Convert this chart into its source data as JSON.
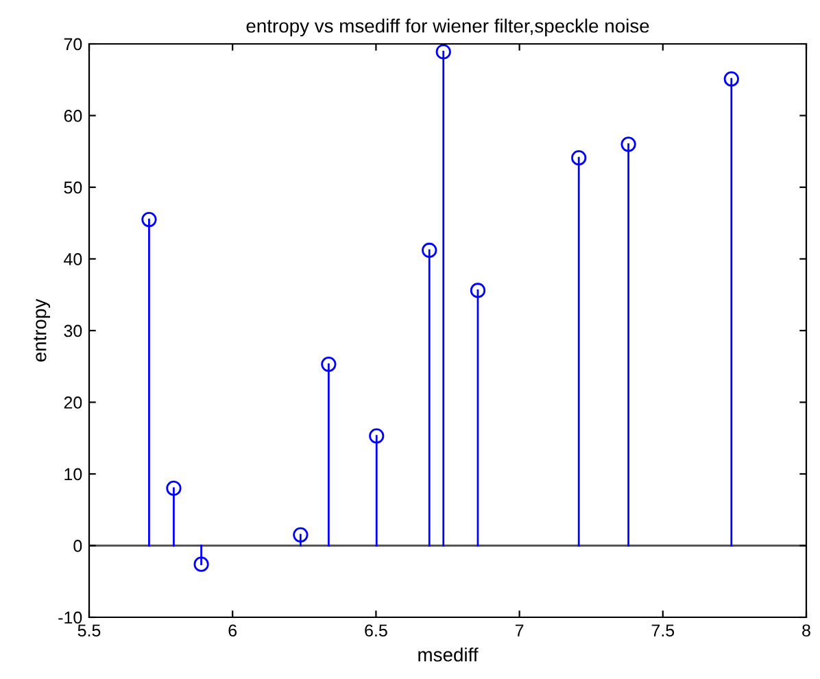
{
  "chart_data": {
    "type": "lollipop",
    "title": "entropy vs msediff for wiener filter,speckle noise",
    "xlabel": "msediff",
    "ylabel": "entropy",
    "x": [
      5.709,
      5.795,
      5.891,
      6.237,
      6.335,
      6.502,
      6.686,
      6.735,
      6.855,
      7.207,
      7.38,
      7.739
    ],
    "series": [
      {
        "color": "#0000ff",
        "values": [
          45.5,
          8.0,
          -2.6,
          1.5,
          25.3,
          15.3,
          41.2,
          68.9,
          35.6,
          54.1,
          56.0,
          65.1
        ]
      }
    ],
    "xlim": [
      5.5,
      8
    ],
    "xticks": [
      5.5,
      6,
      6.5,
      7,
      7.5,
      8
    ],
    "ylim": [
      -10,
      70
    ],
    "yticks": [
      -10,
      0,
      10,
      20,
      30,
      40,
      50,
      60,
      70
    ],
    "ref_lines": [
      {
        "axis": "y",
        "value": 0,
        "color": "#555555"
      }
    ],
    "marker": "circle",
    "grid": false,
    "legend": false
  }
}
